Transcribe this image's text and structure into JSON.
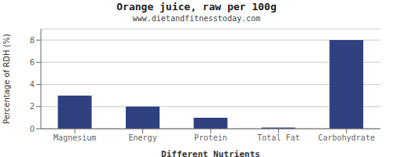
{
  "chart_data": {
    "type": "bar",
    "title": "Orange juice, raw per 100g",
    "subtitle": "www.dietandfitnesstoday.com",
    "categories": [
      "Magnesium",
      "Energy",
      "Protein",
      "Total Fat",
      "Carbohydrate"
    ],
    "values": [
      3.0,
      2.0,
      1.0,
      0.1,
      8.0
    ],
    "color": "#2e4080",
    "xlabel": "Different Nutrients",
    "ylabel": "Percentage of RDH (%)",
    "ylim": [
      0,
      9
    ],
    "yticks": [
      0,
      2,
      4,
      6,
      8
    ],
    "grid": true
  }
}
